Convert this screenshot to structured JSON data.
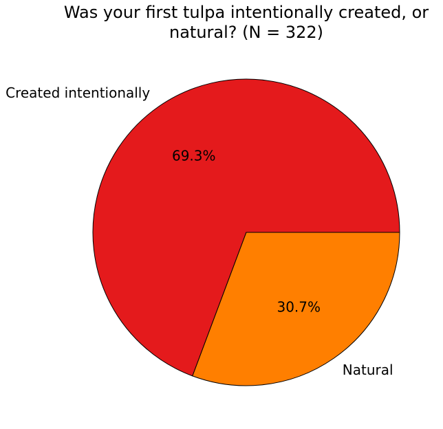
{
  "chart_data": {
    "type": "pie",
    "title": "Was your first tulpa intentionally created, or natural? (N = 322)",
    "categories": [
      "Created intentionally",
      "Natural"
    ],
    "values": [
      69.3,
      30.7
    ],
    "value_labels": [
      "69.3%",
      "30.7%"
    ],
    "colors": [
      "#e41a1c",
      "#ff7f00"
    ]
  }
}
